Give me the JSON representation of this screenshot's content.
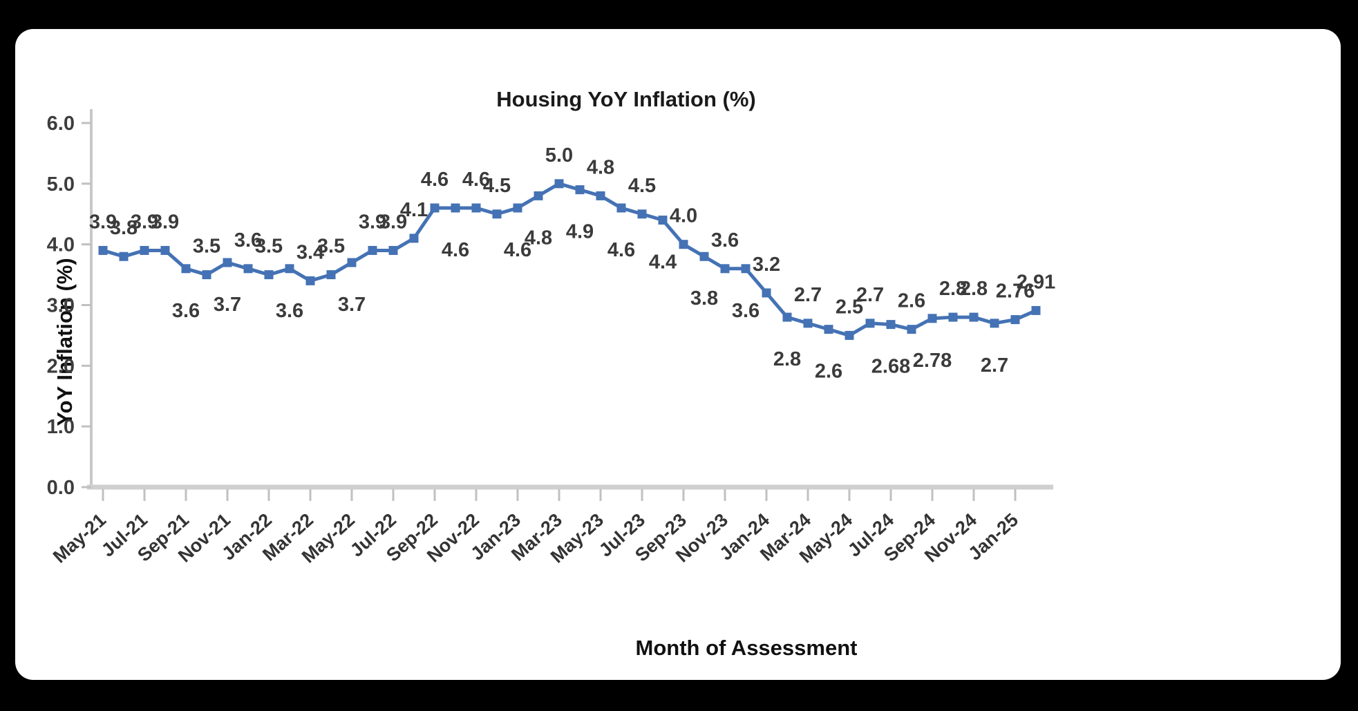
{
  "frame": {
    "background_color": "#000000",
    "panel_background_color": "#ffffff"
  },
  "chart_data": {
    "type": "line",
    "title": "Housing YoY Inflation (%)",
    "xlabel": "Month of Assessment",
    "ylabel": "YoY Inflation (%)",
    "ylim": [
      0,
      6
    ],
    "ytick_labels": [
      "0.0",
      "1.0",
      "2.0",
      "3.0",
      "4.0",
      "5.0",
      "6.0"
    ],
    "grid": false,
    "legend_position": "none",
    "line_color": "#4472B4",
    "marker_shape": "square",
    "x": [
      "May-21",
      "Jun-21",
      "Jul-21",
      "Aug-21",
      "Sep-21",
      "Oct-21",
      "Nov-21",
      "Dec-21",
      "Jan-22",
      "Feb-22",
      "Mar-22",
      "Apr-22",
      "May-22",
      "Jun-22",
      "Jul-22",
      "Aug-22",
      "Sep-22",
      "Oct-22",
      "Nov-22",
      "Dec-22",
      "Jan-23",
      "Feb-23",
      "Mar-23",
      "Apr-23",
      "May-23",
      "Jun-23",
      "Jul-23",
      "Aug-23",
      "Sep-23",
      "Oct-23",
      "Nov-23",
      "Dec-23",
      "Jan-24",
      "Feb-24",
      "Mar-24",
      "Apr-24",
      "May-24",
      "Jun-24",
      "Jul-24",
      "Aug-24",
      "Sep-24",
      "Oct-24",
      "Nov-24",
      "Dec-24",
      "Jan-25",
      "Feb-25"
    ],
    "xtick_labels": [
      "May-21",
      "Jul-21",
      "Sep-21",
      "Nov-21",
      "Jan-22",
      "Mar-22",
      "May-22",
      "Jul-22",
      "Sep-22",
      "Nov-22",
      "Jan-23",
      "Mar-23",
      "May-23",
      "Jul-23",
      "Sep-23",
      "Nov-23",
      "Jan-24",
      "Mar-24",
      "May-24",
      "Jul-24",
      "Sep-24",
      "Nov-24",
      "Jan-25"
    ],
    "series": [
      {
        "name": "Housing YoY Inflation (%)",
        "values": [
          3.9,
          3.8,
          3.9,
          3.9,
          3.6,
          3.5,
          3.7,
          3.6,
          3.5,
          3.6,
          3.4,
          3.5,
          3.7,
          3.9,
          3.9,
          4.1,
          4.6,
          4.6,
          4.6,
          4.5,
          4.6,
          4.8,
          5.0,
          4.9,
          4.8,
          4.6,
          4.5,
          4.4,
          4.0,
          3.8,
          3.6,
          3.6,
          3.2,
          2.8,
          2.7,
          2.6,
          2.5,
          2.7,
          2.68,
          2.6,
          2.78,
          2.8,
          2.8,
          2.7,
          2.76,
          2.91
        ],
        "labels": [
          "3.9",
          "3.8",
          "3.9",
          "3.9",
          "3.6",
          "3.5",
          "3.7",
          "3.6",
          "3.5",
          "3.6",
          "3.4",
          "3.5",
          "3.7",
          "3.9",
          "3.9",
          "4.1",
          "4.6",
          "4.6",
          "4.6",
          "4.5",
          "4.6",
          "4.8",
          "5.0",
          "4.9",
          "4.8",
          "4.6",
          "4.5",
          "4.4",
          "4.0",
          "3.8",
          "3.6",
          "3.6",
          "3.2",
          "2.8",
          "2.7",
          "2.6",
          "2.5",
          "2.7",
          "2.68",
          "2.6",
          "2.78",
          "2.8",
          "2.8",
          "2.7",
          "2.76",
          "2.91"
        ],
        "label_side": [
          "above",
          "above",
          "above",
          "above",
          "below",
          "above",
          "below",
          "above",
          "above",
          "below",
          "above",
          "above",
          "below",
          "above",
          "above",
          "above",
          "above",
          "below",
          "above",
          "above",
          "below",
          "below",
          "above",
          "below",
          "above",
          "below",
          "above",
          "below",
          "above",
          "below",
          "above",
          "below",
          "above",
          "below",
          "above",
          "below",
          "above",
          "above",
          "below",
          "above",
          "below",
          "above",
          "above",
          "below",
          "above",
          "above"
        ]
      }
    ]
  }
}
